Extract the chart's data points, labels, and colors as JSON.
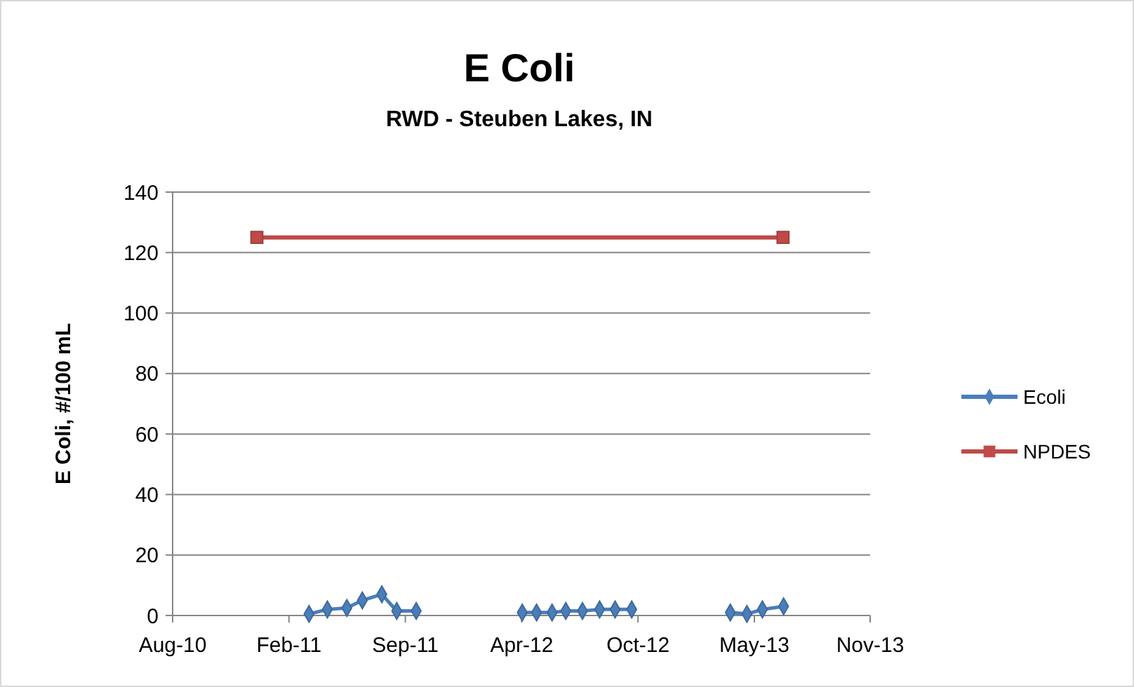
{
  "chart_data": {
    "type": "line",
    "title": "E Coli",
    "subtitle": "RWD - Steuben Lakes, IN",
    "ylabel": "E Coli, #/100 mL",
    "xlim": [
      "2010-08-01",
      "2013-11-30"
    ],
    "xticks": [
      {
        "value": "2010-08-01",
        "label": "Aug-10"
      },
      {
        "value": "2011-02-20",
        "label": "Feb-11"
      },
      {
        "value": "2011-09-11",
        "label": "Sep-11"
      },
      {
        "value": "2012-04-01",
        "label": "Apr-12"
      },
      {
        "value": "2012-10-21",
        "label": "Oct-12"
      },
      {
        "value": "2013-05-12",
        "label": "May-13"
      },
      {
        "value": "2013-11-30",
        "label": "Nov-13"
      }
    ],
    "ylim": [
      0,
      140
    ],
    "yticks": [
      0,
      20,
      40,
      60,
      80,
      100,
      120,
      140
    ],
    "grid": "y",
    "legend": "right",
    "series": [
      {
        "name": "Ecoli",
        "color": "#4a7ebb",
        "marker": "diamond",
        "x": [
          "2011-03-27",
          "2011-04-28",
          "2011-06-01",
          "2011-06-28",
          "2011-08-01",
          "2011-08-27",
          "2011-09-30",
          null,
          "2012-04-02",
          "2012-04-27",
          "2012-05-24",
          "2012-06-17",
          "2012-07-16",
          "2012-08-15",
          "2012-09-11",
          "2012-10-10",
          null,
          "2013-03-31",
          "2013-04-29",
          "2013-05-26",
          "2013-07-02"
        ],
        "values": [
          0.5,
          2,
          2.5,
          5,
          7,
          1.5,
          1.5,
          null,
          1,
          1,
          1,
          1.5,
          1.5,
          2,
          2,
          2,
          null,
          1,
          0.5,
          2,
          3
        ]
      },
      {
        "name": "NPDES",
        "color": "#be4b48",
        "marker": "square",
        "x": [
          "2010-12-26",
          "2013-07-01"
        ],
        "values": [
          125,
          125
        ]
      }
    ]
  }
}
